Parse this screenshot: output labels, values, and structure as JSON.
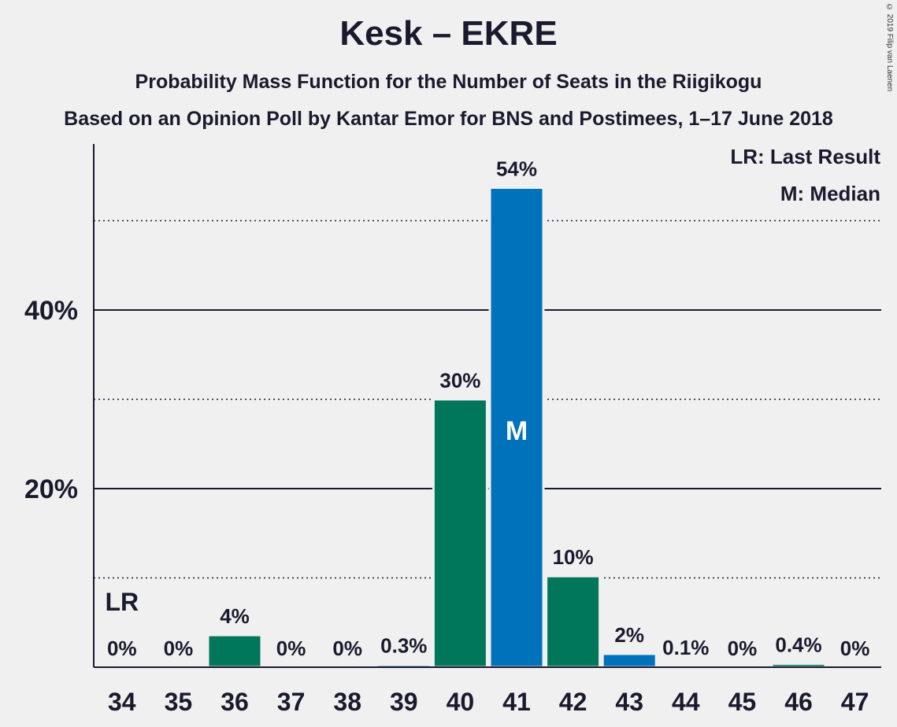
{
  "chart_data": {
    "type": "bar",
    "title": "Kesk – EKRE",
    "subtitle": "Probability Mass Function for the Number of Seats in the Riigikogu",
    "subtitle2": "Based on an Opinion Poll by Kantar Emor for BNS and Postimees, 1–17 June 2018",
    "copyright": "© 2019 Filip van Laenen",
    "legend": [
      "LR: Last Result",
      "M: Median"
    ],
    "legend_placement": "top-right",
    "xlabel": "",
    "ylabel": "",
    "ylim": [
      0,
      58
    ],
    "yticks": [
      {
        "value": 20,
        "label": "20%"
      },
      {
        "value": 40,
        "label": "40%"
      }
    ],
    "gridlines_solid": [
      20,
      40
    ],
    "gridlines_dotted": [
      10,
      30,
      50
    ],
    "categories": [
      "34",
      "35",
      "36",
      "37",
      "38",
      "39",
      "40",
      "41",
      "42",
      "43",
      "44",
      "45",
      "46",
      "47"
    ],
    "values": [
      0,
      0,
      3.6,
      0,
      0,
      0.3,
      30,
      53.7,
      10.2,
      1.5,
      0.1,
      0,
      0.4,
      0
    ],
    "labels": [
      "0%",
      "0%",
      "4%",
      "0%",
      "0%",
      "0.3%",
      "30%",
      "54%",
      "10%",
      "2%",
      "0.1%",
      "0%",
      "0.4%",
      "0%"
    ],
    "colors": [
      "#0072bb",
      "#0072bb",
      "#00775a",
      "#0072bb",
      "#0072bb",
      "#0072bb",
      "#00775a",
      "#0072bb",
      "#00775a",
      "#0072bb",
      "#0072bb",
      "#0072bb",
      "#00775a",
      "#0072bb"
    ],
    "last_result": {
      "category": "34",
      "label": "LR"
    },
    "median": {
      "category": "41",
      "label": "M"
    }
  }
}
